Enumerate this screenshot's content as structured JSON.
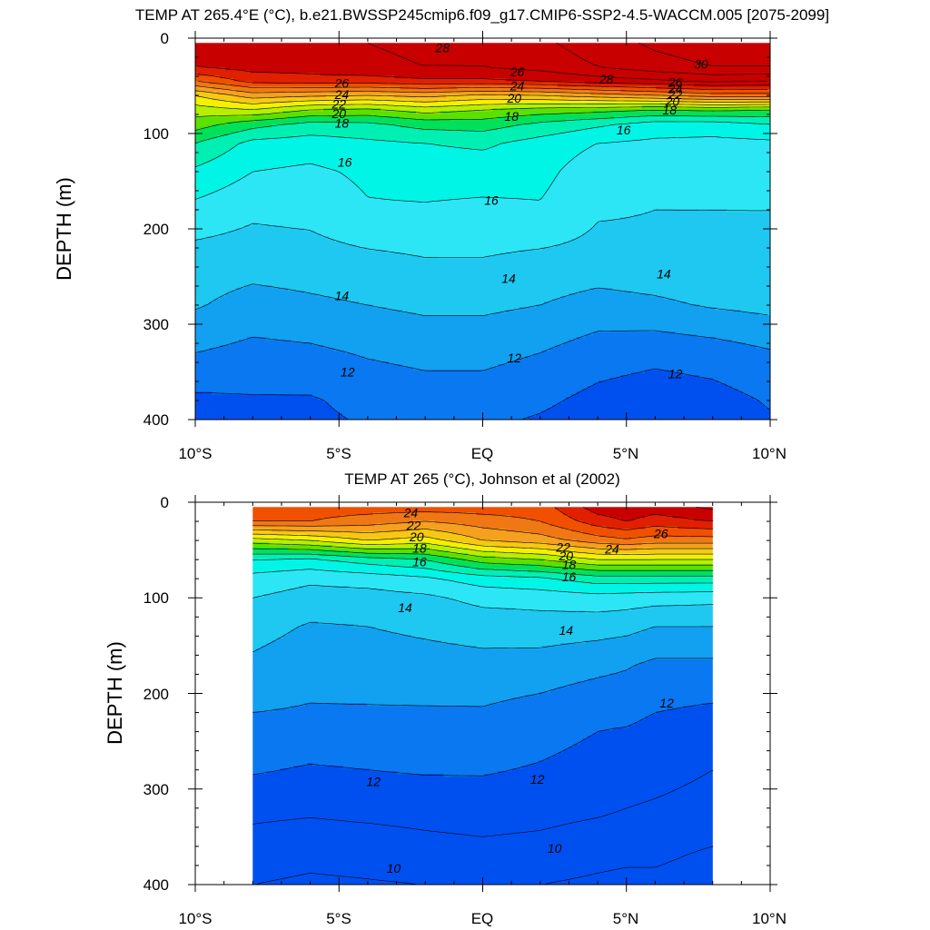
{
  "colors": {
    "palette": [
      "#0050f0",
      "#0a78f0",
      "#12a0f0",
      "#1ec8f0",
      "#2de6f5",
      "#00f5e6",
      "#00f0b4",
      "#00e15a",
      "#5ae100",
      "#b4f000",
      "#f5f000",
      "#f5c814",
      "#f5a01e",
      "#f07814",
      "#f05000",
      "#e02000",
      "#c80000"
    ],
    "contour_line": "#000000"
  },
  "chart_data": [
    {
      "type": "heatmap",
      "title": "TEMP AT 265.4°E (°C), b.e21.BWSSP245cmip6.f09_g17.CMIP6-SSP2-4.5-WACCM.005 [2075-2099]",
      "xlabel": "",
      "ylabel": "DEPTH (m)",
      "x_ticks": [
        "10°S",
        "5°S",
        "EQ",
        "5°N",
        "10°N"
      ],
      "y_ticks": [
        "0",
        "100",
        "200",
        "300",
        "400"
      ],
      "xlim": [
        -10,
        10
      ],
      "ylim": [
        400,
        0
      ],
      "data_extent": [
        -10,
        10
      ],
      "x": [
        -10,
        -8,
        -6,
        -4,
        -2,
        0,
        2,
        4,
        6,
        8,
        10
      ],
      "depth_levels": [
        5,
        30,
        45,
        60,
        75,
        90,
        110,
        140,
        180,
        230,
        280,
        330,
        380,
        400
      ],
      "temperature": [
        [
          27.5,
          27.8,
          27.8,
          28.0,
          28.2,
          28.4,
          28.8,
          29.5,
          30.2,
          30.6,
          30.6
        ],
        [
          27.0,
          27.4,
          27.5,
          27.8,
          28.0,
          28.0,
          28.4,
          29.0,
          29.6,
          30.0,
          30.0
        ],
        [
          25.0,
          26.3,
          26.5,
          26.5,
          26.8,
          26.8,
          27.0,
          27.5,
          27.8,
          28.2,
          28.0
        ],
        [
          22.0,
          23.5,
          23.2,
          23.0,
          23.3,
          22.8,
          23.0,
          23.5,
          24.0,
          24.5,
          24.5
        ],
        [
          20.5,
          21.0,
          20.0,
          19.8,
          20.5,
          20.0,
          19.6,
          19.4,
          19.0,
          19.2,
          19.0
        ],
        [
          19.5,
          18.4,
          17.7,
          17.8,
          18.4,
          18.5,
          17.8,
          17.2,
          16.6,
          16.6,
          17.0
        ],
        [
          18.0,
          16.7,
          16.5,
          16.8,
          17.0,
          17.2,
          16.6,
          16.0,
          15.8,
          15.7,
          15.8
        ],
        [
          16.8,
          16.0,
          15.8,
          16.2,
          16.4,
          16.4,
          16.3,
          15.4,
          15.2,
          15.2,
          15.6
        ],
        [
          15.7,
          15.2,
          15.3,
          15.9,
          15.9,
          15.8,
          15.9,
          15.1,
          15.0,
          15.0,
          15.0
        ],
        [
          14.6,
          14.5,
          14.6,
          14.8,
          15.0,
          15.0,
          14.8,
          14.7,
          14.8,
          14.9,
          14.8
        ],
        [
          14.1,
          13.6,
          13.8,
          14.0,
          14.2,
          14.2,
          14.0,
          13.6,
          13.8,
          14.1,
          14.3
        ],
        [
          13.0,
          12.7,
          12.8,
          13.1,
          13.3,
          13.3,
          13.0,
          12.5,
          12.3,
          12.5,
          12.9
        ],
        [
          11.8,
          11.9,
          11.9,
          12.3,
          12.5,
          12.5,
          12.2,
          11.7,
          11.4,
          11.6,
          12.1
        ],
        [
          11.5,
          11.7,
          11.8,
          12.1,
          12.2,
          12.2,
          11.9,
          11.5,
          11.3,
          11.5,
          11.9
        ]
      ],
      "contour_levels": [
        10,
        11,
        12,
        13,
        14,
        15,
        16,
        17,
        18,
        19,
        20,
        21,
        22,
        23,
        24,
        25,
        26,
        27,
        28,
        29,
        30
      ],
      "contour_labels": [
        {
          "text": "28",
          "x": -1.4,
          "depth": 10
        },
        {
          "text": "26",
          "x": -4.9,
          "depth": 47
        },
        {
          "text": "24",
          "x": -4.9,
          "depth": 59
        },
        {
          "text": "22",
          "x": -5.0,
          "depth": 69
        },
        {
          "text": "20",
          "x": -5.0,
          "depth": 79
        },
        {
          "text": "18",
          "x": -4.9,
          "depth": 89
        },
        {
          "text": "26",
          "x": 1.2,
          "depth": 35
        },
        {
          "text": "24",
          "x": 1.2,
          "depth": 50
        },
        {
          "text": "20",
          "x": 1.1,
          "depth": 63
        },
        {
          "text": "18",
          "x": 1.0,
          "depth": 82
        },
        {
          "text": "28",
          "x": 4.3,
          "depth": 43
        },
        {
          "text": "30",
          "x": 7.6,
          "depth": 27
        },
        {
          "text": "26",
          "x": 6.7,
          "depth": 46
        },
        {
          "text": "24",
          "x": 6.7,
          "depth": 53
        },
        {
          "text": "22",
          "x": 6.7,
          "depth": 59
        },
        {
          "text": "20",
          "x": 6.6,
          "depth": 66
        },
        {
          "text": "18",
          "x": 6.5,
          "depth": 75
        },
        {
          "text": "16",
          "x": 4.9,
          "depth": 96
        },
        {
          "text": "16",
          "x": -4.8,
          "depth": 130
        },
        {
          "text": "16",
          "x": 0.3,
          "depth": 170
        },
        {
          "text": "14",
          "x": 0.9,
          "depth": 252
        },
        {
          "text": "14",
          "x": -4.9,
          "depth": 270
        },
        {
          "text": "14",
          "x": 6.3,
          "depth": 247
        },
        {
          "text": "12",
          "x": 1.1,
          "depth": 335
        },
        {
          "text": "12",
          "x": -4.7,
          "depth": 350
        },
        {
          "text": "12",
          "x": 6.7,
          "depth": 352
        }
      ]
    },
    {
      "type": "heatmap",
      "title": "TEMP AT 265 (°C), Johnson et al (2002)",
      "xlabel": "",
      "ylabel": "DEPTH (m)",
      "x_ticks": [
        "10°S",
        "5°S",
        "EQ",
        "5°N",
        "10°N"
      ],
      "y_ticks": [
        "0",
        "100",
        "200",
        "300",
        "400"
      ],
      "xlim": [
        -10,
        10
      ],
      "ylim": [
        400,
        0
      ],
      "data_extent": [
        -8,
        8
      ],
      "x": [
        -8,
        -6,
        -4,
        -2,
        0,
        2,
        4,
        5,
        6,
        8
      ],
      "depth_levels": [
        5,
        20,
        40,
        60,
        80,
        100,
        130,
        170,
        220,
        280,
        330,
        370,
        400
      ],
      "temperature": [
        [
          25.5,
          25.5,
          25.5,
          25.5,
          25.5,
          25.5,
          27.5,
          27.8,
          27.5,
          28.2
        ],
        [
          25.0,
          25.0,
          24.5,
          24.0,
          24.5,
          25.0,
          26.5,
          27.0,
          26.5,
          27.0
        ],
        [
          20.5,
          21.0,
          22.0,
          21.5,
          23.0,
          23.5,
          24.5,
          24.8,
          24.5,
          24.5
        ],
        [
          17.0,
          16.8,
          17.5,
          18.0,
          19.5,
          20.0,
          21.0,
          21.0,
          21.0,
          21.0
        ],
        [
          15.6,
          15.2,
          15.4,
          15.8,
          16.5,
          16.8,
          17.5,
          17.5,
          17.5,
          17.5
        ],
        [
          15.0,
          14.6,
          14.6,
          14.8,
          15.3,
          15.4,
          15.6,
          15.5,
          15.4,
          15.3
        ],
        [
          14.4,
          13.9,
          14.0,
          14.2,
          14.4,
          14.5,
          14.4,
          14.3,
          14.0,
          14.0
        ],
        [
          13.8,
          13.4,
          13.5,
          13.6,
          13.7,
          13.6,
          13.3,
          13.1,
          12.8,
          12.8
        ],
        [
          13.0,
          12.9,
          12.9,
          12.9,
          12.9,
          12.6,
          12.2,
          12.2,
          12.0,
          11.8
        ],
        [
          12.1,
          11.9,
          12.0,
          12.1,
          12.1,
          11.9,
          11.6,
          11.4,
          11.3,
          11.0
        ],
        [
          11.1,
          11.0,
          11.1,
          11.2,
          11.3,
          11.2,
          11.0,
          10.9,
          10.8,
          10.6
        ],
        [
          10.5,
          10.3,
          10.4,
          10.6,
          10.7,
          10.6,
          10.3,
          10.2,
          10.2,
          9.8
        ],
        [
          10.0,
          9.8,
          9.9,
          10.0,
          10.1,
          10.0,
          9.8,
          9.7,
          9.7,
          9.4
        ]
      ],
      "contour_levels": [
        10,
        11,
        12,
        13,
        14,
        15,
        16,
        17,
        18,
        19,
        20,
        21,
        22,
        23,
        24,
        25,
        26,
        27,
        28
      ],
      "contour_labels": [
        {
          "text": "24",
          "x": -2.5,
          "depth": 11
        },
        {
          "text": "22",
          "x": -2.4,
          "depth": 24
        },
        {
          "text": "20",
          "x": -2.3,
          "depth": 36
        },
        {
          "text": "18",
          "x": -2.2,
          "depth": 48
        },
        {
          "text": "16",
          "x": -2.2,
          "depth": 62
        },
        {
          "text": "22",
          "x": 2.8,
          "depth": 47
        },
        {
          "text": "20",
          "x": 2.9,
          "depth": 56
        },
        {
          "text": "18",
          "x": 3.0,
          "depth": 65
        },
        {
          "text": "16",
          "x": 3.0,
          "depth": 78
        },
        {
          "text": "24",
          "x": 4.5,
          "depth": 49
        },
        {
          "text": "26",
          "x": 6.2,
          "depth": 33
        },
        {
          "text": "14",
          "x": -2.7,
          "depth": 110
        },
        {
          "text": "14",
          "x": 2.9,
          "depth": 134
        },
        {
          "text": "12",
          "x": 6.4,
          "depth": 210
        },
        {
          "text": "12",
          "x": 1.9,
          "depth": 290
        },
        {
          "text": "12",
          "x": -3.8,
          "depth": 292
        },
        {
          "text": "10",
          "x": 2.5,
          "depth": 362
        },
        {
          "text": "10",
          "x": -3.1,
          "depth": 383
        }
      ]
    }
  ]
}
